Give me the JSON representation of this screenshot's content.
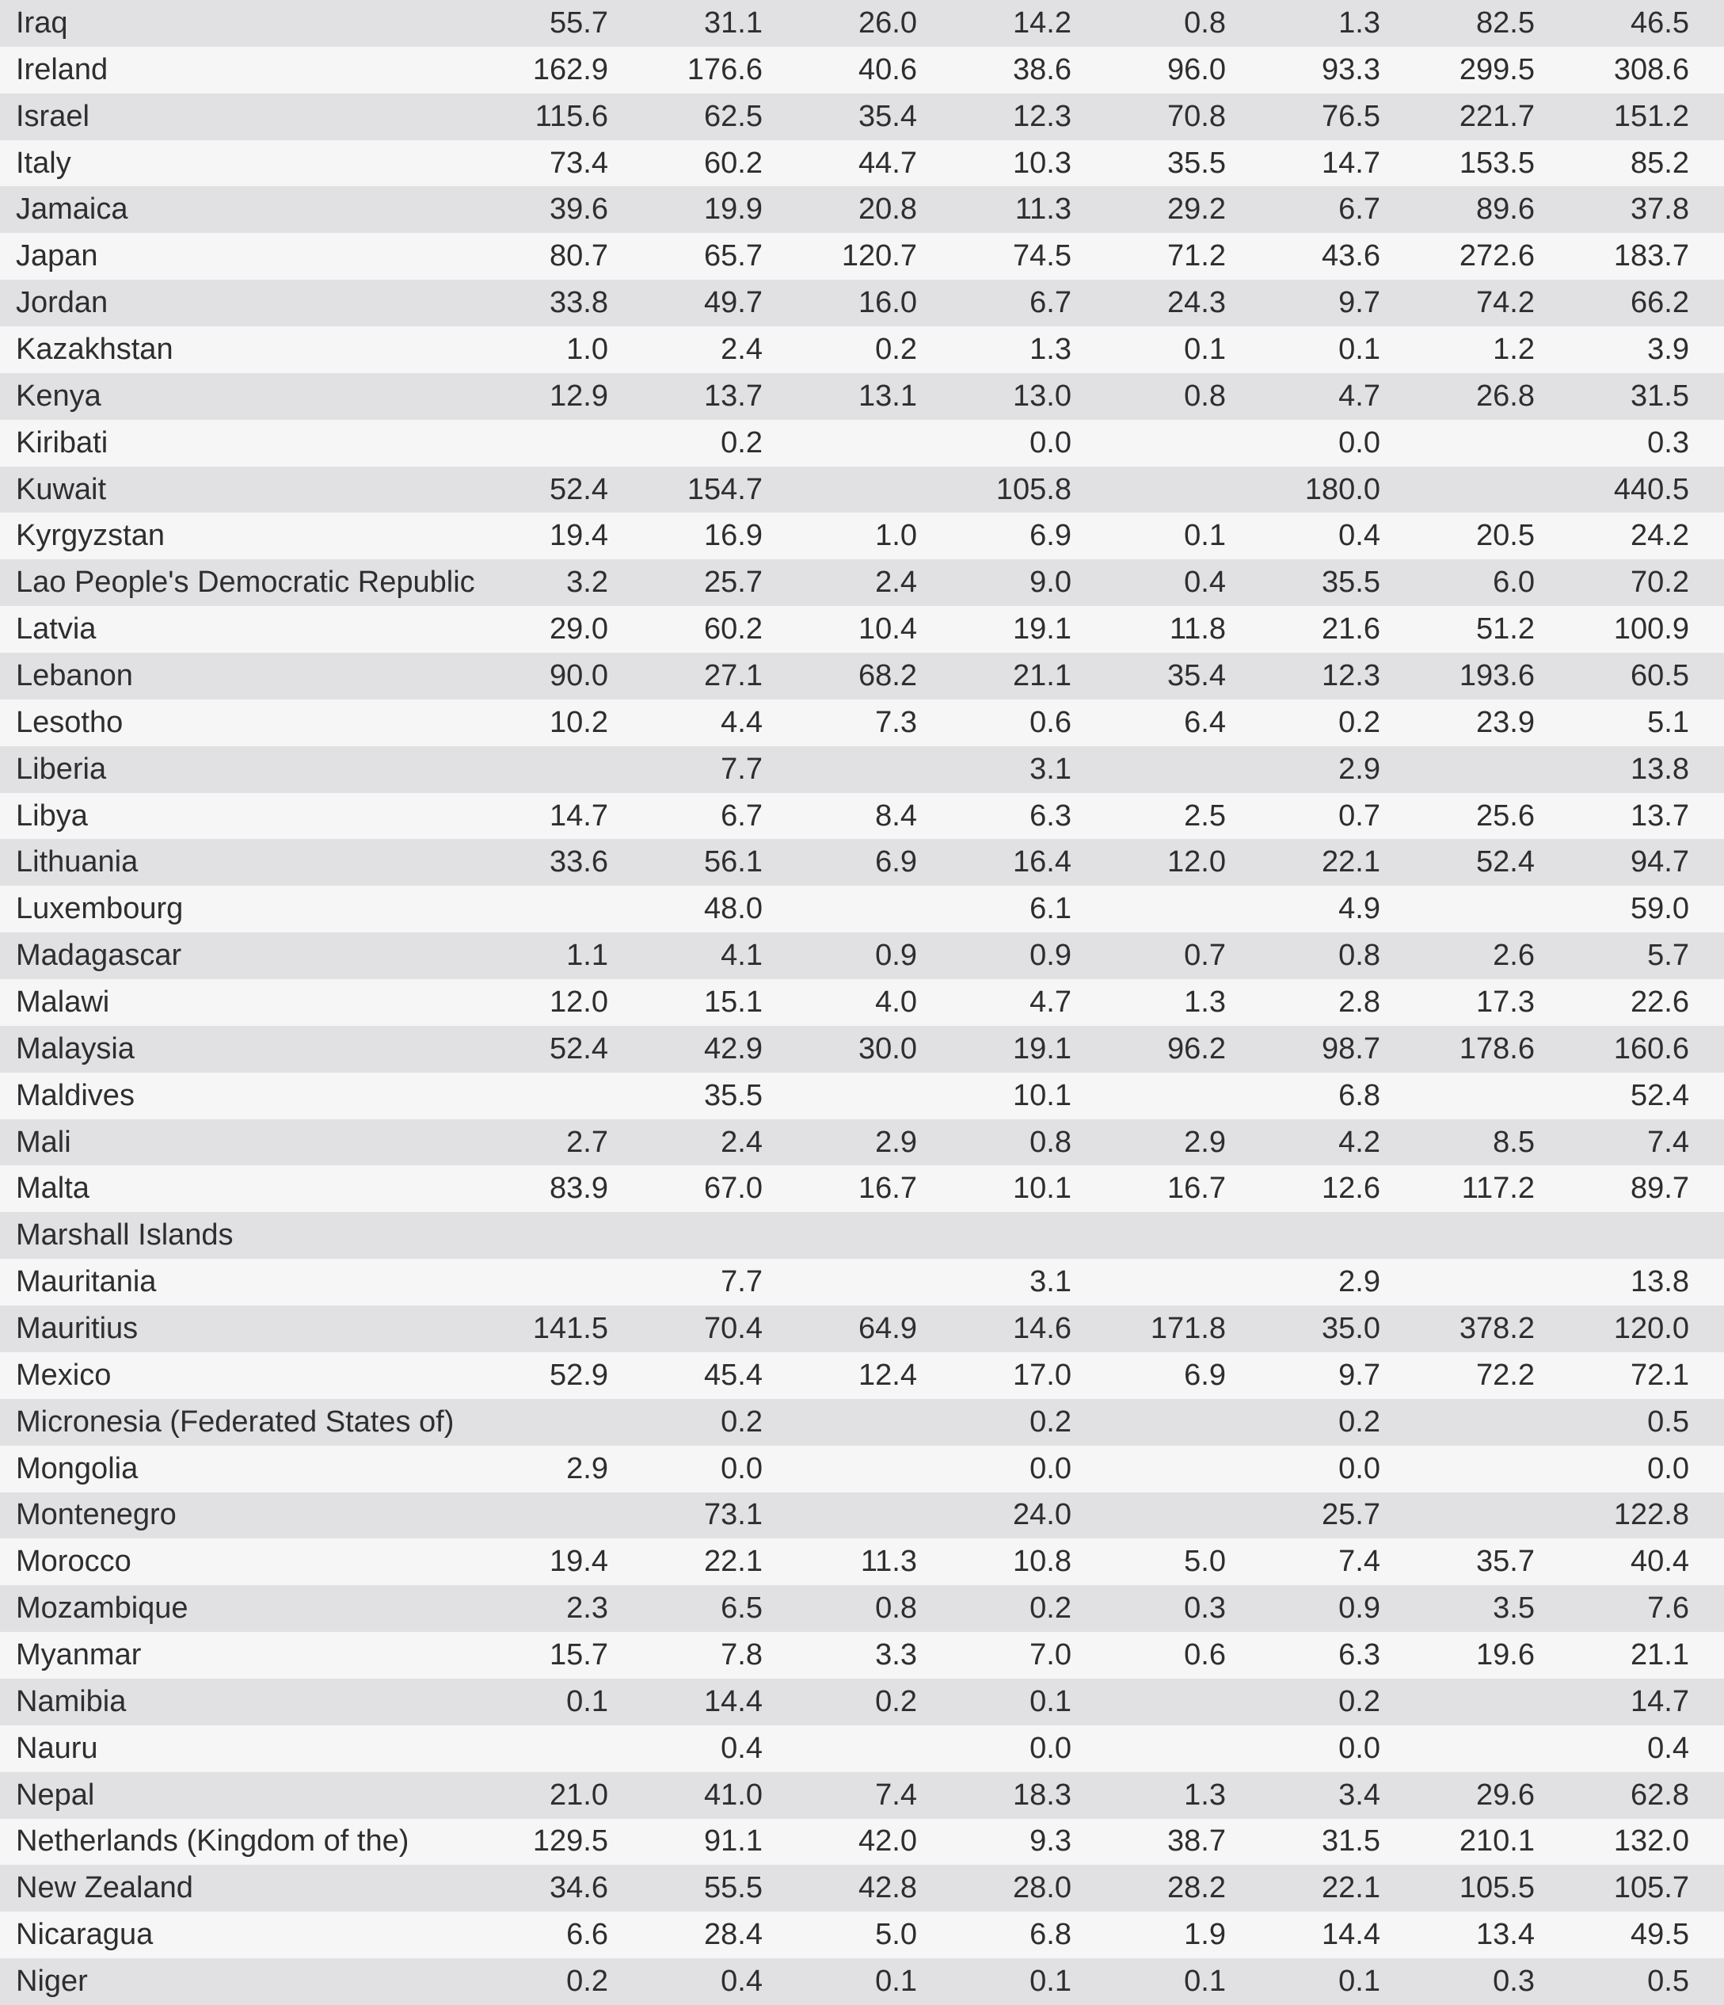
{
  "colors": {
    "row_stripe_bg": "#e1e1e4",
    "row_plain_bg": "#f6f6f7",
    "text": "#2e2e30"
  },
  "table": {
    "rows": [
      {
        "country": "Iraq",
        "values": [
          "55.7",
          "31.1",
          "26.0",
          "14.2",
          "0.8",
          "1.3",
          "82.5",
          "46.5"
        ]
      },
      {
        "country": "Ireland",
        "values": [
          "162.9",
          "176.6",
          "40.6",
          "38.6",
          "96.0",
          "93.3",
          "299.5",
          "308.6"
        ]
      },
      {
        "country": "Israel",
        "values": [
          "115.6",
          "62.5",
          "35.4",
          "12.3",
          "70.8",
          "76.5",
          "221.7",
          "151.2"
        ]
      },
      {
        "country": "Italy",
        "values": [
          "73.4",
          "60.2",
          "44.7",
          "10.3",
          "35.5",
          "14.7",
          "153.5",
          "85.2"
        ]
      },
      {
        "country": "Jamaica",
        "values": [
          "39.6",
          "19.9",
          "20.8",
          "11.3",
          "29.2",
          "6.7",
          "89.6",
          "37.8"
        ]
      },
      {
        "country": "Japan",
        "values": [
          "80.7",
          "65.7",
          "120.7",
          "74.5",
          "71.2",
          "43.6",
          "272.6",
          "183.7"
        ]
      },
      {
        "country": "Jordan",
        "values": [
          "33.8",
          "49.7",
          "16.0",
          "6.7",
          "24.3",
          "9.7",
          "74.2",
          "66.2"
        ]
      },
      {
        "country": "Kazakhstan",
        "values": [
          "1.0",
          "2.4",
          "0.2",
          "1.3",
          "0.1",
          "0.1",
          "1.2",
          "3.9"
        ]
      },
      {
        "country": "Kenya",
        "values": [
          "12.9",
          "13.7",
          "13.1",
          "13.0",
          "0.8",
          "4.7",
          "26.8",
          "31.5"
        ]
      },
      {
        "country": "Kiribati",
        "values": [
          "",
          "0.2",
          "",
          "0.0",
          "",
          "0.0",
          "",
          "0.3"
        ]
      },
      {
        "country": "Kuwait",
        "values": [
          "52.4",
          "154.7",
          "",
          "105.8",
          "",
          "180.0",
          "",
          "440.5"
        ]
      },
      {
        "country": "Kyrgyzstan",
        "values": [
          "19.4",
          "16.9",
          "1.0",
          "6.9",
          "0.1",
          "0.4",
          "20.5",
          "24.2"
        ]
      },
      {
        "country": "Lao People's Democratic Republic",
        "values": [
          "3.2",
          "25.7",
          "2.4",
          "9.0",
          "0.4",
          "35.5",
          "6.0",
          "70.2"
        ]
      },
      {
        "country": "Latvia",
        "values": [
          "29.0",
          "60.2",
          "10.4",
          "19.1",
          "11.8",
          "21.6",
          "51.2",
          "100.9"
        ]
      },
      {
        "country": "Lebanon",
        "values": [
          "90.0",
          "27.1",
          "68.2",
          "21.1",
          "35.4",
          "12.3",
          "193.6",
          "60.5"
        ]
      },
      {
        "country": "Lesotho",
        "values": [
          "10.2",
          "4.4",
          "7.3",
          "0.6",
          "6.4",
          "0.2",
          "23.9",
          "5.1"
        ]
      },
      {
        "country": "Liberia",
        "values": [
          "",
          "7.7",
          "",
          "3.1",
          "",
          "2.9",
          "",
          "13.8"
        ]
      },
      {
        "country": "Libya",
        "values": [
          "14.7",
          "6.7",
          "8.4",
          "6.3",
          "2.5",
          "0.7",
          "25.6",
          "13.7"
        ]
      },
      {
        "country": "Lithuania",
        "values": [
          "33.6",
          "56.1",
          "6.9",
          "16.4",
          "12.0",
          "22.1",
          "52.4",
          "94.7"
        ]
      },
      {
        "country": "Luxembourg",
        "values": [
          "",
          "48.0",
          "",
          "6.1",
          "",
          "4.9",
          "",
          "59.0"
        ]
      },
      {
        "country": "Madagascar",
        "values": [
          "1.1",
          "4.1",
          "0.9",
          "0.9",
          "0.7",
          "0.8",
          "2.6",
          "5.7"
        ]
      },
      {
        "country": "Malawi",
        "values": [
          "12.0",
          "15.1",
          "4.0",
          "4.7",
          "1.3",
          "2.8",
          "17.3",
          "22.6"
        ]
      },
      {
        "country": "Malaysia",
        "values": [
          "52.4",
          "42.9",
          "30.0",
          "19.1",
          "96.2",
          "98.7",
          "178.6",
          "160.6"
        ]
      },
      {
        "country": "Maldives",
        "values": [
          "",
          "35.5",
          "",
          "10.1",
          "",
          "6.8",
          "",
          "52.4"
        ]
      },
      {
        "country": "Mali",
        "values": [
          "2.7",
          "2.4",
          "2.9",
          "0.8",
          "2.9",
          "4.2",
          "8.5",
          "7.4"
        ]
      },
      {
        "country": "Malta",
        "values": [
          "83.9",
          "67.0",
          "16.7",
          "10.1",
          "16.7",
          "12.6",
          "117.2",
          "89.7"
        ]
      },
      {
        "country": "Marshall Islands",
        "values": [
          "",
          "",
          "",
          "",
          "",
          "",
          "",
          ""
        ]
      },
      {
        "country": "Mauritania",
        "values": [
          "",
          "7.7",
          "",
          "3.1",
          "",
          "2.9",
          "",
          "13.8"
        ]
      },
      {
        "country": "Mauritius",
        "values": [
          "141.5",
          "70.4",
          "64.9",
          "14.6",
          "171.8",
          "35.0",
          "378.2",
          "120.0"
        ]
      },
      {
        "country": "Mexico",
        "values": [
          "52.9",
          "45.4",
          "12.4",
          "17.0",
          "6.9",
          "9.7",
          "72.2",
          "72.1"
        ]
      },
      {
        "country": "Micronesia (Federated States of)",
        "values": [
          "",
          "0.2",
          "",
          "0.2",
          "",
          "0.2",
          "",
          "0.5"
        ]
      },
      {
        "country": "Mongolia",
        "values": [
          "2.9",
          "0.0",
          "",
          "0.0",
          "",
          "0.0",
          "",
          "0.0"
        ]
      },
      {
        "country": "Montenegro",
        "values": [
          "",
          "73.1",
          "",
          "24.0",
          "",
          "25.7",
          "",
          "122.8"
        ]
      },
      {
        "country": "Morocco",
        "values": [
          "19.4",
          "22.1",
          "11.3",
          "10.8",
          "5.0",
          "7.4",
          "35.7",
          "40.4"
        ]
      },
      {
        "country": "Mozambique",
        "values": [
          "2.3",
          "6.5",
          "0.8",
          "0.2",
          "0.3",
          "0.9",
          "3.5",
          "7.6"
        ]
      },
      {
        "country": "Myanmar",
        "values": [
          "15.7",
          "7.8",
          "3.3",
          "7.0",
          "0.6",
          "6.3",
          "19.6",
          "21.1"
        ]
      },
      {
        "country": "Namibia",
        "values": [
          "0.1",
          "14.4",
          "0.2",
          "0.1",
          "",
          "0.2",
          "",
          "14.7"
        ]
      },
      {
        "country": "Nauru",
        "values": [
          "",
          "0.4",
          "",
          "0.0",
          "",
          "0.0",
          "",
          "0.4"
        ]
      },
      {
        "country": "Nepal",
        "values": [
          "21.0",
          "41.0",
          "7.4",
          "18.3",
          "1.3",
          "3.4",
          "29.6",
          "62.8"
        ]
      },
      {
        "country": "Netherlands (Kingdom of the)",
        "values": [
          "129.5",
          "91.1",
          "42.0",
          "9.3",
          "38.7",
          "31.5",
          "210.1",
          "132.0"
        ]
      },
      {
        "country": "New Zealand",
        "values": [
          "34.6",
          "55.5",
          "42.8",
          "28.0",
          "28.2",
          "22.1",
          "105.5",
          "105.7"
        ]
      },
      {
        "country": "Nicaragua",
        "values": [
          "6.6",
          "28.4",
          "5.0",
          "6.8",
          "1.9",
          "14.4",
          "13.4",
          "49.5"
        ]
      },
      {
        "country": "Niger",
        "values": [
          "0.2",
          "0.4",
          "0.1",
          "0.1",
          "0.1",
          "0.1",
          "0.3",
          "0.5"
        ]
      }
    ]
  }
}
